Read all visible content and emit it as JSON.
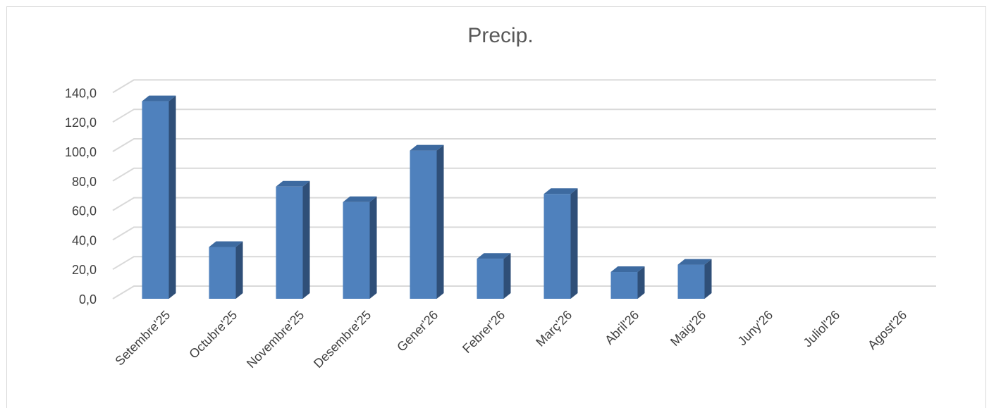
{
  "chart_data": {
    "type": "bar",
    "title": "Precip.",
    "xlabel": "",
    "ylabel": "",
    "categories": [
      "Setembre'25",
      "Octubre'25",
      "Novembre'25",
      "Desembre'25",
      "Gener'26",
      "Febrer'26",
      "Març'26",
      "Abril'26",
      "Maig'26",
      "Juny'26",
      "Juliol'26",
      "Agost'26"
    ],
    "values": [
      138.0,
      39.0,
      80.0,
      69.5,
      104.5,
      31.0,
      75.0,
      22.0,
      27.0,
      null,
      null,
      null
    ],
    "ylim": [
      0,
      140
    ],
    "yticks": [
      "0,0",
      "20,0",
      "40,0",
      "60,0",
      "80,0",
      "100,0",
      "120,0",
      "140,0"
    ],
    "grid": true,
    "legend": "none",
    "style": "3d-column",
    "colors": {
      "bar_front": "#4f81bd",
      "bar_side": "#2f4f78",
      "bar_top": "#3d6aa0",
      "grid": "#d9d9d9",
      "title": "#595959",
      "text": "#404040"
    }
  }
}
